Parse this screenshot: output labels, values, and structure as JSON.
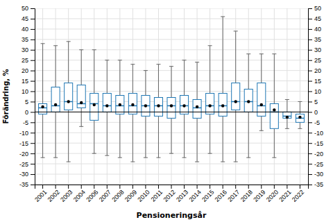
{
  "chart_data": {
    "type": "box",
    "xlabel": "Pensioneringsår",
    "ylabel": "Förändring, %",
    "categories": [
      "2001",
      "2002",
      "2003",
      "2004",
      "2006",
      "2007",
      "2008",
      "2009",
      "2010",
      "2011",
      "2012",
      "2013",
      "2014",
      "2015",
      "2016",
      "2017",
      "2018",
      "2019",
      "2020",
      "2021",
      "2022"
    ],
    "whislo": [
      -22,
      -22,
      -24,
      -7,
      -20,
      -21,
      -22,
      -24,
      -22,
      -22,
      -20,
      -22,
      -24,
      -20,
      -24,
      -24,
      -22,
      -9,
      -22,
      -8,
      -8
    ],
    "q1": [
      -1,
      0,
      1,
      2,
      -4,
      0,
      -1,
      -1,
      -2,
      -2,
      -3,
      -1,
      -3,
      -1,
      -2,
      1,
      0,
      -2,
      -8,
      -3,
      -5
    ],
    "med": [
      2,
      3,
      5,
      4,
      4,
      3,
      3,
      3,
      3,
      3,
      3,
      3,
      2,
      3,
      3,
      5,
      5,
      3,
      0,
      -2,
      -3
    ],
    "mean": [
      2.5,
      3.5,
      5.0,
      4.5,
      3.5,
      3.0,
      3.5,
      3.5,
      3.0,
      3.0,
      3.0,
      3.0,
      2.5,
      3.0,
      3.0,
      5.0,
      5.0,
      3.5,
      1.0,
      -2.5,
      -2.5
    ],
    "q3": [
      4,
      12,
      14,
      13,
      9,
      9,
      8,
      9,
      8,
      7,
      7,
      8,
      6,
      9,
      9,
      14,
      11,
      14,
      4,
      0,
      -1
    ],
    "whishi": [
      33,
      32,
      34,
      30,
      30,
      25,
      25,
      23,
      20,
      23,
      22,
      25,
      24,
      32,
      46,
      39,
      28,
      28,
      28,
      6,
      5
    ],
    "hline": 0,
    "ylim": [
      -35,
      50
    ],
    "yticks": [
      -35,
      -30,
      -25,
      -20,
      -15,
      -10,
      -5,
      0,
      5,
      10,
      15,
      20,
      25,
      30,
      35,
      40,
      45,
      50
    ],
    "y2lim": [
      -35,
      50
    ],
    "y2ticks": [
      -35,
      -30,
      -25,
      -20,
      -15,
      -10,
      -5,
      0,
      5,
      10,
      15,
      20,
      25,
      30,
      35,
      40,
      45,
      50
    ],
    "grid": true
  }
}
